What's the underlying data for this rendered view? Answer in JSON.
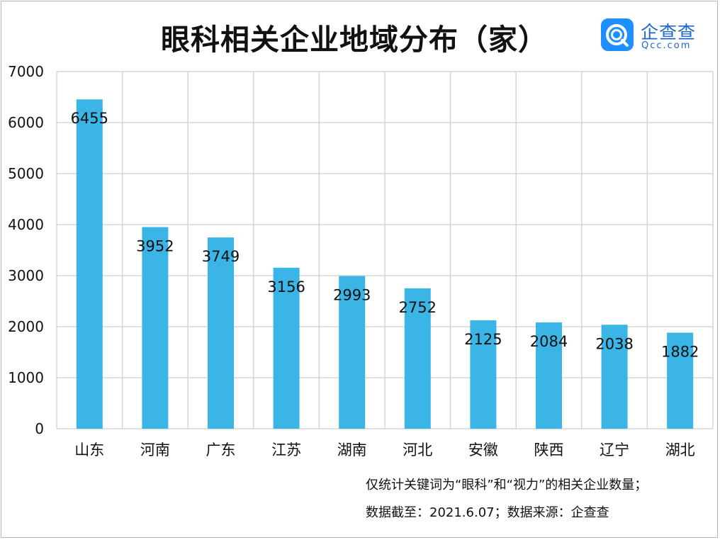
{
  "title": "眼科相关企业地域分布（家）",
  "logo": {
    "name": "企查查",
    "domain": "Qcc.com"
  },
  "notes": [
    "仅统计关键词为“眼科”和“视力”的相关企业数量；",
    "数据截至：2021.6.07；数据来源：企查查"
  ],
  "colors": {
    "bar": "#3ab5e6",
    "grid": "#d5d5d5",
    "text": "#111111",
    "logo": "#1e8fff"
  },
  "chart_data": {
    "type": "bar",
    "title": "眼科相关企业地域分布（家）",
    "categories": [
      "山东",
      "河南",
      "广东",
      "江苏",
      "湖南",
      "河北",
      "安徽",
      "陕西",
      "辽宁",
      "湖北"
    ],
    "values": [
      6455,
      3952,
      3749,
      3156,
      2993,
      2752,
      2125,
      2084,
      2038,
      1882
    ],
    "data_labels": [
      "6455",
      "3952",
      "3749",
      "3156",
      "2993",
      "2752",
      "2125",
      "2084",
      "2038",
      "1882"
    ],
    "ylim": [
      0,
      7000
    ],
    "yticks": [
      0,
      1000,
      2000,
      3000,
      4000,
      5000,
      6000,
      7000
    ],
    "xlabel": "",
    "ylabel": "",
    "grid": true,
    "legend": "none"
  }
}
